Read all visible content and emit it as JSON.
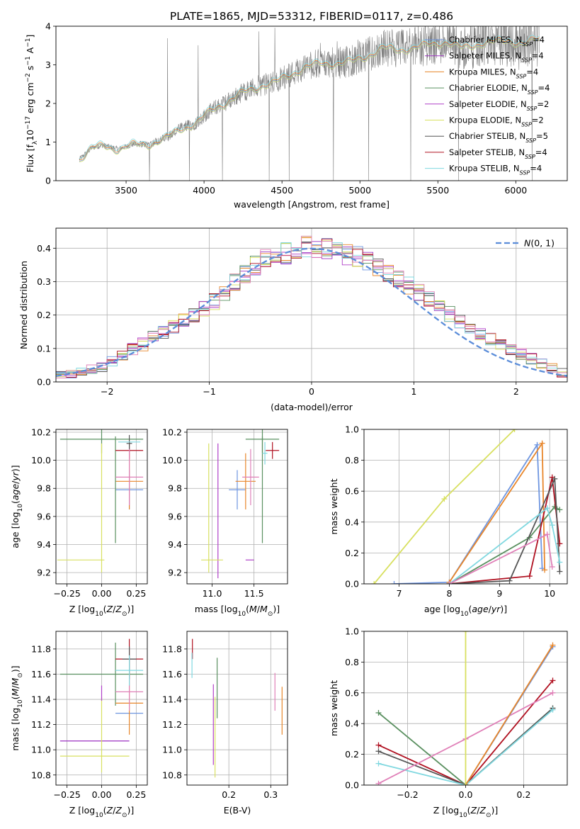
{
  "figure": {
    "title": "PLATE=1865, MJD=53312, FIBERID=0117, z=0.486"
  },
  "colors": {
    "Chabrier MILES": "#6f96e0",
    "Salpeter MILES": "#9b30c0",
    "Kroupa MILES": "#e8862a",
    "Chabrier ELODIE": "#5a9060",
    "Salpeter ELODIE": "#b040c8",
    "Kroupa ELODIE": "#d8e060",
    "Chabrier STELIB": "#555555",
    "Salpeter STELIB": "#b01020",
    "Kroupa STELIB": "#80d8e0",
    "extra_pink": "#e080b8",
    "data": "#808080",
    "gauss": "#5b8dd9"
  },
  "chart_data": [
    {
      "id": "spectrum",
      "type": "line",
      "xlabel": "wavelength [Angstrom, rest frame]",
      "ylabel": "Flux [f_λ 10^-17 erg cm^-2 s^-1 A^-1]",
      "xlim": [
        3050,
        6330
      ],
      "ylim": [
        0,
        4
      ],
      "xticks": [
        3500,
        4000,
        4500,
        5000,
        5500,
        6000
      ],
      "yticks": [
        0,
        1,
        2,
        3,
        4
      ],
      "grid": false,
      "legend_position": "top-right",
      "legend": [
        {
          "model": "Chabrier MILES",
          "nssp": "4"
        },
        {
          "model": "Salpeter MILES",
          "nssp": "4"
        },
        {
          "model": "Kroupa MILES",
          "nssp": "4"
        },
        {
          "model": "Chabrier ELODIE",
          "nssp": "4"
        },
        {
          "model": "Salpeter ELODIE",
          "nssp": "2"
        },
        {
          "model": "Kroupa ELODIE",
          "nssp": "2"
        },
        {
          "model": "Chabrier STELIB",
          "nssp": "5"
        },
        {
          "model": "Salpeter STELIB",
          "nssp": "4"
        },
        {
          "model": "Kroupa STELIB",
          "nssp": "4"
        }
      ],
      "model_continuum": {
        "x": [
          3200,
          3280,
          3350,
          3450,
          3550,
          3650,
          3750,
          3850,
          3950,
          4050,
          4150,
          4250,
          4350,
          4450,
          4550,
          4650,
          4750,
          4850,
          4950,
          5050,
          5150,
          5250,
          5350,
          5450,
          5550,
          5650,
          5750,
          5850,
          5950,
          6050,
          6150
        ],
        "y": [
          0.55,
          0.85,
          0.92,
          0.82,
          0.95,
          0.95,
          1.1,
          1.35,
          1.5,
          1.85,
          2.05,
          2.3,
          2.45,
          2.55,
          2.75,
          2.95,
          3.05,
          3.05,
          3.1,
          3.25,
          3.45,
          3.4,
          3.45,
          3.55,
          3.6,
          3.45,
          3.55,
          3.6,
          3.65,
          3.55,
          3.7
        ]
      }
    },
    {
      "id": "residuals",
      "type": "histogram",
      "xlabel": "(data-model)/error",
      "ylabel": "Normed distribution",
      "xlim": [
        -2.5,
        2.5
      ],
      "ylim": [
        0,
        0.46
      ],
      "xticks": [
        -2,
        -1,
        0,
        1,
        2
      ],
      "yticks": [
        0.0,
        0.1,
        0.2,
        0.3,
        0.4
      ],
      "grid": true,
      "legend_position": "top-right",
      "reference_curve": {
        "label": "N(0,1)",
        "mean": 0,
        "sigma": 1
      },
      "bin_width": 0.1,
      "profile": {
        "x": [
          -2.5,
          -2.0,
          -1.5,
          -1.0,
          -0.5,
          0.0,
          0.5,
          1.0,
          1.5,
          2.0,
          2.5
        ],
        "y": [
          0.015,
          0.05,
          0.14,
          0.23,
          0.36,
          0.41,
          0.37,
          0.28,
          0.17,
          0.09,
          0.02
        ]
      }
    },
    {
      "id": "age_vs_Z",
      "type": "scatter",
      "xlabel": "Z [log10(Z/Z⊙)]",
      "ylabel": "age [log10(age/yr)]",
      "xlim": [
        -0.33,
        0.33
      ],
      "ylim": [
        9.12,
        10.22
      ],
      "xticks": [
        -0.25,
        0.0,
        0.25
      ],
      "xticklabels": [
        "−0.25",
        "0.00",
        "0.25"
      ],
      "yticks": [
        9.2,
        9.4,
        9.6,
        9.8,
        10.0,
        10.2
      ],
      "grid": true,
      "points": [
        {
          "m": "Chabrier MILES",
          "x": 0.2,
          "y": 9.79,
          "xerr": 0.1,
          "yerr": 0.14
        },
        {
          "m": "Kroupa MILES",
          "x": 0.2,
          "y": 9.85,
          "xerr": 0.1,
          "yerr": 0.2
        },
        {
          "m": "Chabrier ELODIE",
          "x": 0.0,
          "y": 10.15,
          "xerr": 0.3,
          "yerr": 0.1
        },
        {
          "m": "Chabrier ELODIE",
          "x": 0.1,
          "y": 9.79,
          "xerr": 0.0,
          "yerr": 0.38
        },
        {
          "m": "Kroupa ELODIE",
          "x": -0.15,
          "y": 9.29,
          "xerr": 0.17,
          "yerr": 0.0
        },
        {
          "m": "Kroupa ELODIE",
          "x": 0.0,
          "y": 9.66,
          "xerr": 0.0,
          "yerr": 0.46
        },
        {
          "m": "Salpeter STELIB",
          "x": 0.2,
          "y": 10.07,
          "xerr": 0.1,
          "yerr": 0.06
        },
        {
          "m": "Chabrier STELIB",
          "x": 0.2,
          "y": 10.12,
          "xerr": 0.02,
          "yerr": 0.06
        },
        {
          "m": "Kroupa STELIB",
          "x": 0.2,
          "y": 10.13,
          "xerr": 0.08,
          "yerr": 0.0
        },
        {
          "m": "extra_pink",
          "x": 0.2,
          "y": 9.88,
          "xerr": 0.1,
          "yerr": 0.2
        }
      ]
    },
    {
      "id": "age_vs_mass",
      "type": "scatter",
      "xlabel": "mass [log10(M/M⊙)]",
      "ylabel": "",
      "xlim": [
        10.7,
        11.9
      ],
      "ylim": [
        9.12,
        10.22
      ],
      "xticks": [
        11.0,
        11.5
      ],
      "xticklabels": [
        "11.0",
        "11.5"
      ],
      "yticks": [
        9.2,
        9.4,
        9.6,
        9.8,
        10.0,
        10.2
      ],
      "grid": true,
      "points": [
        {
          "m": "Chabrier MILES",
          "x": 11.3,
          "y": 9.79,
          "xerr": 0.1,
          "yerr": 0.14
        },
        {
          "m": "Kroupa MILES",
          "x": 11.4,
          "y": 9.85,
          "xerr": 0.12,
          "yerr": 0.2
        },
        {
          "m": "Salpeter ELODIE",
          "x": 11.07,
          "y": 9.64,
          "xerr": 0.0,
          "yerr": 0.48
        },
        {
          "m": "Salpeter ELODIE",
          "x": 11.45,
          "y": 9.29,
          "xerr": 0.05,
          "yerr": 0.0
        },
        {
          "m": "Kroupa ELODIE",
          "x": 10.96,
          "y": 9.66,
          "xerr": 0.0,
          "yerr": 0.46
        },
        {
          "m": "Kroupa ELODIE",
          "x": 11.0,
          "y": 9.29,
          "xerr": 0.13,
          "yerr": 0.0
        },
        {
          "m": "Chabrier ELODIE",
          "x": 11.6,
          "y": 10.15,
          "xerr": 0.2,
          "yerr": 0.1
        },
        {
          "m": "Chabrier ELODIE",
          "x": 11.6,
          "y": 9.79,
          "xerr": 0.0,
          "yerr": 0.38
        },
        {
          "m": "Salpeter STELIB",
          "x": 11.72,
          "y": 10.07,
          "xerr": 0.08,
          "yerr": 0.06
        },
        {
          "m": "Kroupa STELIB",
          "x": 11.63,
          "y": 10.05,
          "xerr": 0.03,
          "yerr": 0.08
        },
        {
          "m": "extra_pink",
          "x": 11.46,
          "y": 9.88,
          "xerr": 0.1,
          "yerr": 0.2
        }
      ]
    },
    {
      "id": "mass_weight_vs_age",
      "type": "line",
      "xlabel": "age [log10(age/yr)]",
      "ylabel": "mass weight",
      "xlim": [
        6.3,
        10.35
      ],
      "ylim": [
        0,
        1
      ],
      "xticks": [
        7,
        8,
        9,
        10
      ],
      "yticks": [
        0.0,
        0.2,
        0.4,
        0.6,
        0.8,
        1.0
      ],
      "grid": true,
      "series": [
        {
          "m": "Kroupa ELODIE",
          "x": [
            6.5,
            7.9,
            9.3
          ],
          "y": [
            0.0,
            0.55,
            1.0
          ]
        },
        {
          "m": "Chabrier MILES",
          "x": [
            6.9,
            8.0,
            9.75,
            9.85
          ],
          "y": [
            0.0,
            0.01,
            0.9,
            0.1
          ]
        },
        {
          "m": "Kroupa MILES",
          "x": [
            8.0,
            9.85,
            9.9
          ],
          "y": [
            0.01,
            0.91,
            0.09
          ]
        },
        {
          "m": "Chabrier ELODIE",
          "x": [
            8.0,
            9.6,
            10.1,
            10.2
          ],
          "y": [
            0.0,
            0.3,
            0.5,
            0.48
          ]
        },
        {
          "m": "Salpeter STELIB",
          "x": [
            8.0,
            9.6,
            10.05,
            10.2
          ],
          "y": [
            0.0,
            0.05,
            0.69,
            0.26
          ]
        },
        {
          "m": "Chabrier STELIB",
          "x": [
            8.0,
            9.2,
            10.1,
            10.2
          ],
          "y": [
            0.0,
            0.02,
            0.68,
            0.08
          ]
        },
        {
          "m": "Kroupa STELIB",
          "x": [
            8.0,
            9.95,
            10.05,
            10.2
          ],
          "y": [
            0.0,
            0.49,
            0.38,
            0.14
          ]
        },
        {
          "m": "extra_pink",
          "x": [
            8.0,
            9.95,
            10.05
          ],
          "y": [
            0.0,
            0.32,
            0.11
          ]
        }
      ]
    },
    {
      "id": "mass_vs_Z",
      "type": "scatter",
      "xlabel": "Z [log10(Z/Z⊙)]",
      "ylabel": "mass [log10(M/M⊙)]",
      "xlim": [
        -0.33,
        0.33
      ],
      "ylim": [
        10.72,
        11.94
      ],
      "xticks": [
        -0.25,
        0.0,
        0.25
      ],
      "xticklabels": [
        "−0.25",
        "0.00",
        "0.25"
      ],
      "yticks": [
        10.8,
        11.0,
        11.2,
        11.4,
        11.6,
        11.8
      ],
      "grid": true,
      "points": [
        {
          "m": "Salpeter MILES",
          "x": -0.05,
          "y": 11.07,
          "xerr": 0.25,
          "yerr": 0.0
        },
        {
          "m": "Kroupa ELODIE",
          "x": -0.05,
          "y": 10.95,
          "xerr": 0.25,
          "yerr": 0.0
        },
        {
          "m": "Kroupa ELODIE",
          "x": 0.0,
          "y": 11.12,
          "xerr": 0.0,
          "yerr": 0.3
        },
        {
          "m": "Salpeter ELODIE",
          "x": 0.0,
          "y": 11.45,
          "xerr": 0.0,
          "yerr": 0.06
        },
        {
          "m": "Chabrier ELODIE",
          "x": 0.0,
          "y": 11.6,
          "xerr": 0.3,
          "yerr": 0.0
        },
        {
          "m": "Chabrier ELODIE",
          "x": 0.1,
          "y": 11.6,
          "xerr": 0.0,
          "yerr": 0.25
        },
        {
          "m": "Chabrier MILES",
          "x": 0.2,
          "y": 11.29,
          "xerr": 0.1,
          "yerr": 0.0
        },
        {
          "m": "Kroupa MILES",
          "x": 0.2,
          "y": 11.37,
          "xerr": 0.1,
          "yerr": 0.25
        },
        {
          "m": "extra_pink",
          "x": 0.2,
          "y": 11.46,
          "xerr": 0.1,
          "yerr": 0.15
        },
        {
          "m": "Salpeter STELIB",
          "x": 0.2,
          "y": 11.72,
          "xerr": 0.1,
          "yerr": 0.16
        },
        {
          "m": "Chabrier STELIB",
          "x": 0.2,
          "y": 11.72,
          "xerr": 0.05,
          "yerr": 0.1
        },
        {
          "m": "Kroupa STELIB",
          "x": 0.2,
          "y": 11.63,
          "xerr": 0.1,
          "yerr": 0.12
        }
      ]
    },
    {
      "id": "mass_vs_ebv",
      "type": "scatter",
      "xlabel": "E(B-V)",
      "ylabel": "",
      "xlim": [
        0.1,
        0.34
      ],
      "ylim": [
        10.72,
        11.94
      ],
      "xticks": [
        0.2,
        0.3
      ],
      "xticklabels": [
        "0.2",
        "0.3"
      ],
      "yticks": [
        10.8,
        11.0,
        11.2,
        11.4,
        11.6,
        11.8
      ],
      "grid": true,
      "points": [
        {
          "m": "Salpeter STELIB",
          "x": 0.113,
          "y": 11.8,
          "xerr": 0.0,
          "yerr": 0.08
        },
        {
          "m": "Kroupa STELIB",
          "x": 0.112,
          "y": 11.67,
          "xerr": 0.0,
          "yerr": 0.1
        },
        {
          "m": "Salpeter ELODIE",
          "x": 0.163,
          "y": 11.2,
          "xerr": 0.0,
          "yerr": 0.32
        },
        {
          "m": "Kroupa ELODIE",
          "x": 0.167,
          "y": 11.1,
          "xerr": 0.0,
          "yerr": 0.32
        },
        {
          "m": "Chabrier ELODIE",
          "x": 0.172,
          "y": 11.49,
          "xerr": 0.0,
          "yerr": 0.24
        },
        {
          "m": "extra_pink",
          "x": 0.31,
          "y": 11.46,
          "xerr": 0.0,
          "yerr": 0.15
        },
        {
          "m": "Kroupa MILES",
          "x": 0.327,
          "y": 11.31,
          "xerr": 0.0,
          "yerr": 0.19
        }
      ]
    },
    {
      "id": "mass_weight_vs_Z",
      "type": "line",
      "xlabel": "Z [log10(Z/Z⊙)]",
      "ylabel": "mass weight",
      "xlim": [
        -0.35,
        0.35
      ],
      "ylim": [
        0,
        1
      ],
      "xticks": [
        -0.2,
        0.0,
        0.2
      ],
      "xticklabels": [
        "−0.2",
        "0.0",
        "0.2"
      ],
      "yticks": [
        0.0,
        0.2,
        0.4,
        0.6,
        0.8,
        1.0
      ],
      "grid": true,
      "series": [
        {
          "m": "Chabrier ELODIE",
          "x": [
            -0.3,
            0.0,
            0.3
          ],
          "y": [
            0.47,
            0.0,
            0.5
          ]
        },
        {
          "m": "Salpeter STELIB",
          "x": [
            -0.3,
            0.0,
            0.3
          ],
          "y": [
            0.26,
            0.0,
            0.68
          ]
        },
        {
          "m": "Chabrier STELIB",
          "x": [
            -0.3,
            0.0,
            0.3
          ],
          "y": [
            0.22,
            0.0,
            0.5
          ]
        },
        {
          "m": "Kroupa STELIB",
          "x": [
            -0.3,
            0.0,
            0.3
          ],
          "y": [
            0.14,
            0.0,
            0.49
          ]
        },
        {
          "m": "extra_pink",
          "x": [
            -0.3,
            0.0,
            0.3
          ],
          "y": [
            0.01,
            0.3,
            0.6
          ]
        },
        {
          "m": "Chabrier MILES",
          "x": [
            0.0,
            0.3
          ],
          "y": [
            0.0,
            0.9
          ]
        },
        {
          "m": "Kroupa MILES",
          "x": [
            0.0,
            0.3
          ],
          "y": [
            0.0,
            0.91
          ]
        },
        {
          "m": "Kroupa ELODIE",
          "x": [
            0.0,
            0.0
          ],
          "y": [
            0.0,
            1.0
          ]
        }
      ]
    }
  ]
}
